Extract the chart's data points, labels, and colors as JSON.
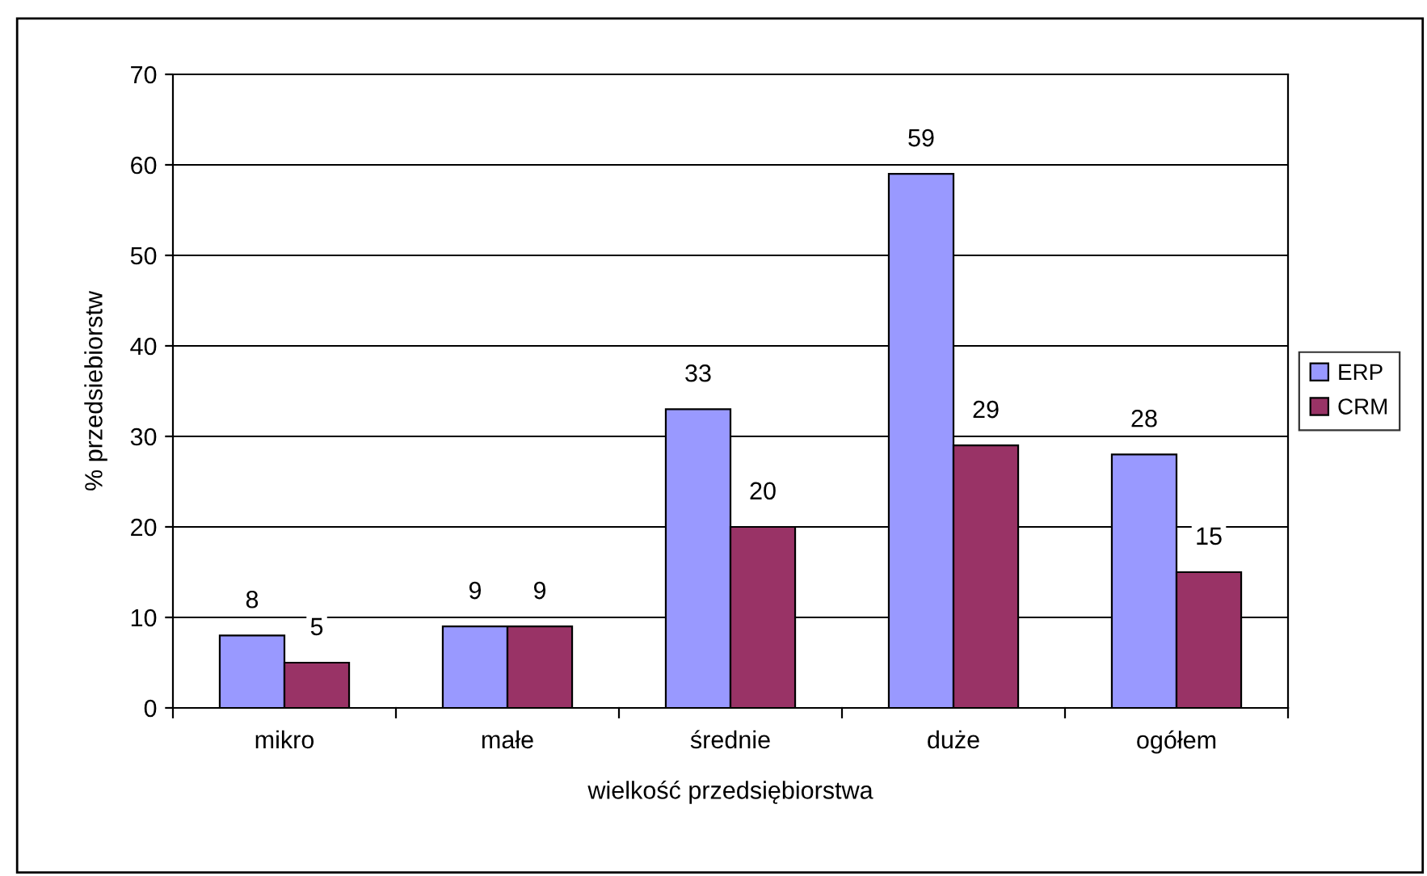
{
  "chart_data": {
    "type": "bar",
    "xlabel": "wielkość przedsiębiorstwa",
    "ylabel": "% przedsiebiorstw",
    "categories": [
      "mikro",
      "małe",
      "średnie",
      "duże",
      "ogółem"
    ],
    "series": [
      {
        "name": "ERP",
        "color": "#9999ff",
        "values": [
          8,
          9,
          33,
          59,
          28
        ]
      },
      {
        "name": "CRM",
        "color": "#993366",
        "values": [
          5,
          9,
          20,
          29,
          15
        ]
      }
    ],
    "ylim": [
      0,
      70
    ],
    "yticks": [
      0,
      10,
      20,
      30,
      40,
      50,
      60,
      70
    ],
    "grid": "y",
    "legend": "right",
    "data_labels": true
  }
}
